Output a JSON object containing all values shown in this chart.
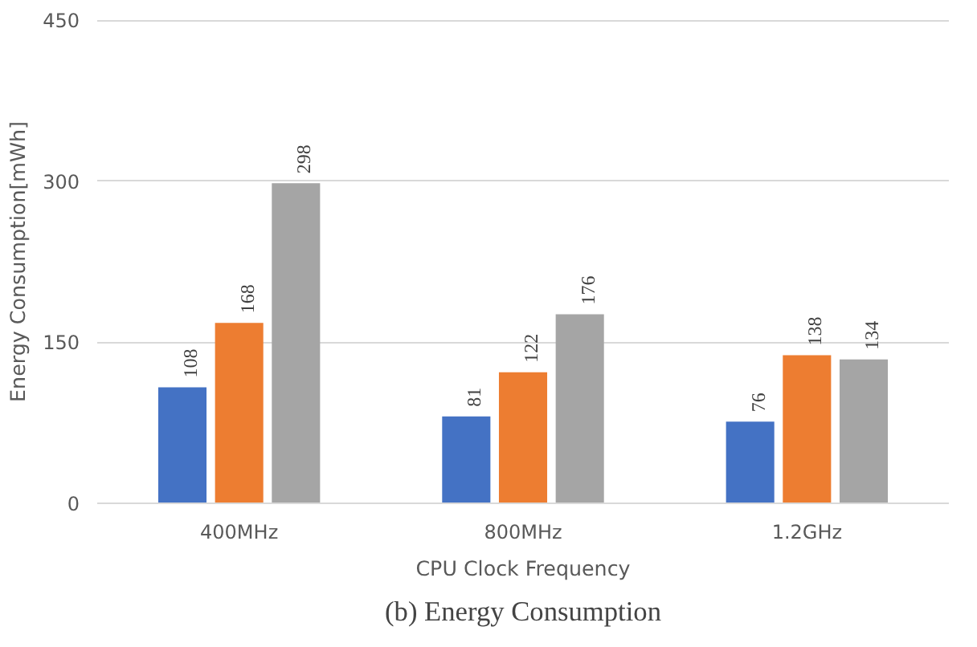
{
  "chart_data": {
    "type": "bar",
    "title": "(b) Energy Consumption",
    "xlabel": "CPU Clock Frequency",
    "ylabel": "Energy Consumption[mWh]",
    "categories": [
      "400MHz",
      "800MHz",
      "1.2GHz"
    ],
    "series": [
      {
        "color": "#4472c4",
        "values": [
          108,
          81,
          76
        ]
      },
      {
        "color": "#ed7d31",
        "values": [
          168,
          122,
          138
        ]
      },
      {
        "color": "#a5a5a5",
        "values": [
          298,
          176,
          134
        ]
      }
    ],
    "ylim": [
      0,
      450
    ],
    "yticks": [
      0,
      150,
      300,
      450
    ],
    "grid": "y",
    "data_labels": true
  }
}
